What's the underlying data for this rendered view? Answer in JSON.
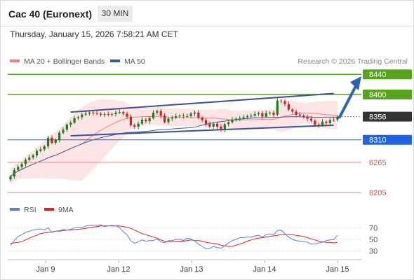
{
  "header": {
    "instrument": "Cac 40 (Euronext)",
    "timeframe": "30 MIN",
    "timestamp": "Thursday, January 15, 2026 7:58:21 AM CET"
  },
  "colors": {
    "resistance": "#58a31c",
    "support_pivot": "#1f66e5",
    "support": "#f08080",
    "bollinger_fill": "#fde0e0",
    "ma20": "#f08080",
    "ma50": "#3a5a9c",
    "channel": "#3a4fa0",
    "arrow": "#2d63b5",
    "up_candle": "#1a7d1a",
    "down_candle": "#c0271f",
    "rsi": "#5b7fd6",
    "rsi_ma": "#e02020",
    "last_price": "#333333"
  },
  "chart_data": [
    {
      "type": "candlestick",
      "title": "Cac 40 (Euronext)",
      "interval": "30 MIN",
      "legend": [
        {
          "label": "MA 20 + Bollinger Bands",
          "color": "#f08080"
        },
        {
          "label": "MA 50",
          "color": "#3a5a9c"
        }
      ],
      "legend_position": "top-left",
      "credit": "Research © 2026 Trading Central",
      "x_ticks": [
        "Jan 9",
        "Jan 12",
        "Jan 13",
        "Jan 14",
        "Jan 15"
      ],
      "ylim": [
        8190,
        8450
      ],
      "grid": false,
      "levels": [
        {
          "label": "8440",
          "value": 8440,
          "kind": "resistance"
        },
        {
          "label": "8400",
          "value": 8400,
          "kind": "resistance"
        },
        {
          "label": "8356",
          "value": 8356,
          "kind": "last"
        },
        {
          "label": "8310",
          "value": 8310,
          "kind": "pivot"
        },
        {
          "label": "8265",
          "value": 8265,
          "kind": "support"
        },
        {
          "label": "8205",
          "value": 8205,
          "kind": "support"
        }
      ],
      "channel": {
        "upper": [
          [
            0.12,
            8365
          ],
          [
            0.59,
            8402
          ]
        ],
        "lower": [
          [
            0.12,
            8318
          ],
          [
            0.59,
            8339
          ]
        ]
      },
      "forecast_arrow": [
        [
          0.595,
          8355
        ],
        [
          0.665,
          8436
        ]
      ],
      "closes": [
        8237,
        8250,
        8256,
        8262,
        8270,
        8275,
        8279,
        8288,
        8291,
        8297,
        8314,
        8304,
        8310,
        8324,
        8330,
        8340,
        8344,
        8353,
        8355,
        8360,
        8362,
        8364,
        8363,
        8362,
        8360,
        8361,
        8360,
        8361,
        8364,
        8365,
        8362,
        8356,
        8339,
        8336,
        8342,
        8350,
        8347,
        8353,
        8364,
        8367,
        8358,
        8345,
        8352,
        8354,
        8357,
        8358,
        8357,
        8357,
        8362,
        8364,
        8354,
        8349,
        8341,
        8336,
        8342,
        8336,
        8329,
        8341,
        8345,
        8350,
        8352,
        8353,
        8355,
        8357,
        8358,
        8361,
        8363,
        8356,
        8363,
        8364,
        8360,
        8388,
        8387,
        8381,
        8370,
        8366,
        8360,
        8358,
        8356,
        8352,
        8348,
        8340,
        8339,
        8346,
        8343,
        8349,
        8350,
        8356
      ],
      "rsi": {
        "label": "RSI",
        "ma_label": "9MA",
        "ylim": [
          20,
          80
        ],
        "ticks": [
          70,
          50,
          30
        ],
        "values": [
          40,
          48,
          55,
          58,
          62,
          64,
          66,
          67,
          68,
          66,
          70,
          62,
          64,
          65,
          67,
          66,
          67,
          70,
          71,
          70,
          73,
          74,
          74,
          74,
          75,
          72,
          73,
          74,
          73,
          71,
          63,
          58,
          48,
          43,
          46,
          49,
          47,
          48,
          48,
          51,
          46,
          44,
          48,
          48,
          50,
          50,
          48,
          52,
          51,
          47,
          42,
          38,
          34,
          34,
          38,
          36,
          35,
          39,
          44,
          48,
          50,
          53,
          53,
          54,
          54,
          56,
          57,
          54,
          58,
          59,
          58,
          65,
          66,
          60,
          54,
          50,
          48,
          47,
          47,
          45,
          42,
          42,
          44,
          45,
          48,
          49,
          50,
          57
        ],
        "ma_values": [
          43,
          44,
          45,
          46,
          49,
          52,
          55,
          57,
          60,
          61,
          62,
          63,
          64,
          64,
          65,
          66,
          66,
          67,
          67,
          68,
          69,
          70,
          71,
          72,
          73,
          73,
          73,
          73,
          73,
          73,
          72,
          71,
          69,
          66,
          63,
          60,
          58,
          56,
          54,
          52,
          49,
          47,
          46,
          46,
          47,
          47,
          47,
          48,
          49,
          48,
          48,
          47,
          45,
          44,
          43,
          42,
          40,
          39,
          38,
          38,
          40,
          42,
          44,
          47,
          49,
          51,
          52,
          53,
          54,
          55,
          56,
          57,
          58,
          58,
          58,
          58,
          57,
          56,
          55,
          53,
          51,
          49,
          47,
          46,
          45,
          45,
          44,
          45
        ]
      }
    }
  ]
}
